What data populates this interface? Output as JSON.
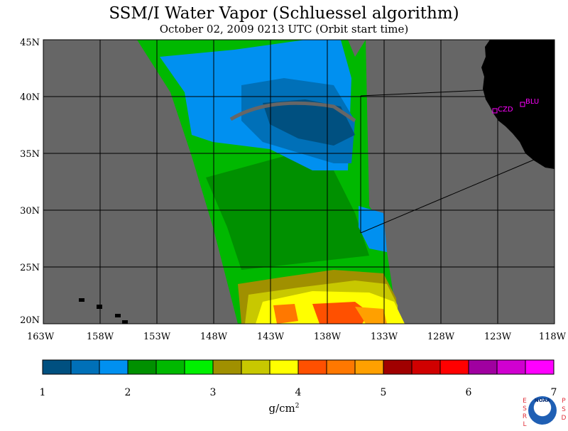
{
  "header": {
    "title": "SSM/I Water Vapor (Schluessel algorithm)",
    "subtitle": "October 02, 2009  0213 UTC  (Orbit start time)"
  },
  "map": {
    "lat_labels": [
      "45N",
      "40N",
      "35N",
      "30N",
      "25N",
      "20N"
    ],
    "lon_labels": [
      "163W",
      "158W",
      "153W",
      "148W",
      "143W",
      "138W",
      "133W",
      "128W",
      "123W",
      "118W"
    ],
    "stations": [
      {
        "label": "CZD"
      },
      {
        "label": "BLU"
      }
    ],
    "colors": {
      "land": "#000000",
      "no_data": "#666666",
      "station": "#ff00ff"
    }
  },
  "colorbar": {
    "colors": [
      "#005080",
      "#0070b8",
      "#0090f0",
      "#009000",
      "#00b800",
      "#00f000",
      "#a09000",
      "#c8c800",
      "#ffff00",
      "#ff5000",
      "#ff7800",
      "#ffa000",
      "#a00000",
      "#d00000",
      "#ff0000",
      "#a000a0",
      "#d000d0",
      "#ff00ff"
    ],
    "labels": [
      "1",
      "2",
      "3",
      "4",
      "5",
      "6",
      "7"
    ],
    "unit": "g/cm",
    "unit_sup": "2"
  },
  "logo": {
    "left_letters": "ESRL",
    "right_letters": "PSD",
    "noaa": "NOAA"
  }
}
